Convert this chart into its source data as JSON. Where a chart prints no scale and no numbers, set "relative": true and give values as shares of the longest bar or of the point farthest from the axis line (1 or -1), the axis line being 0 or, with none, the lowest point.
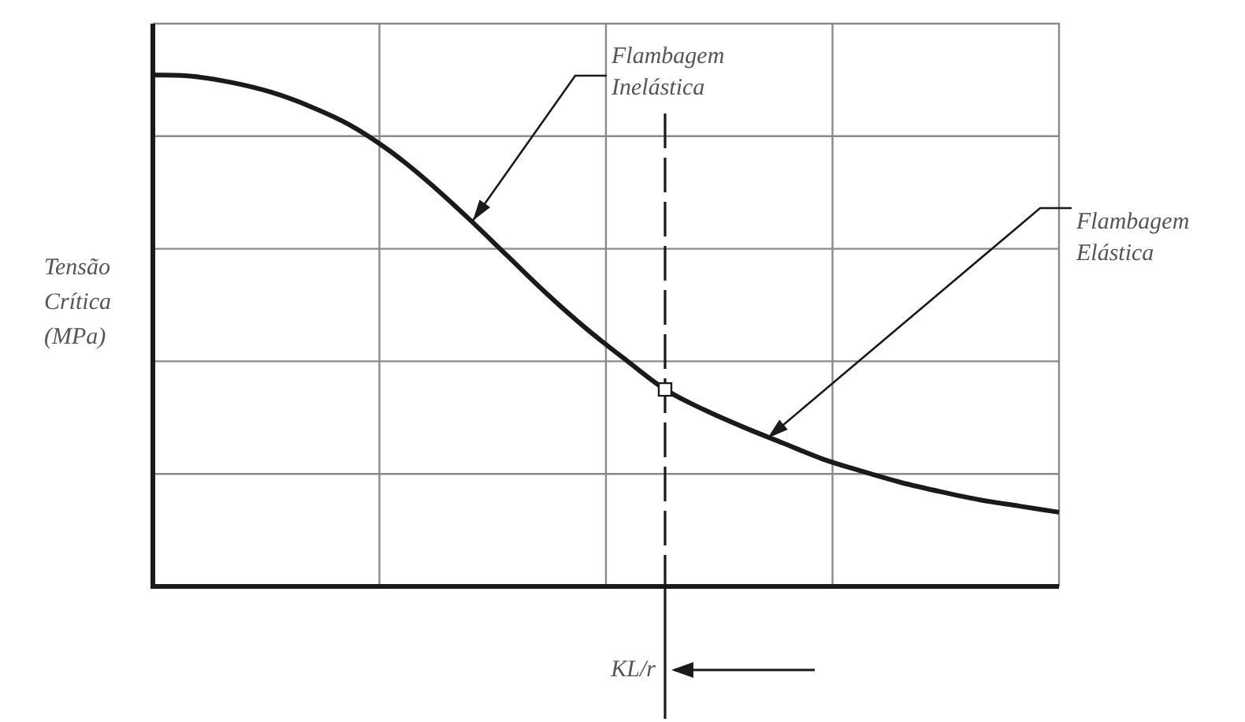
{
  "chart_data": {
    "type": "line",
    "relative": true,
    "grid": true,
    "legend": false,
    "ylabel": "Tensão Crítica (MPa)",
    "categories": [
      null,
      null,
      null,
      null,
      null,
      null,
      null,
      null,
      null,
      null,
      null,
      null,
      null,
      null,
      null,
      null,
      null,
      null,
      null,
      null,
      null,
      null,
      null,
      null
    ],
    "series": [
      {
        "color": "#1a1a1a",
        "values": [
          1.0,
          0.997,
          0.985,
          0.966,
          0.938,
          0.902,
          0.852,
          0.79,
          0.72,
          0.646,
          0.572,
          0.504,
          0.443,
          0.385,
          0.345,
          0.311,
          0.28,
          0.249,
          0.225,
          0.203,
          0.185,
          0.169,
          0.157,
          0.145
        ]
      }
    ],
    "xlabel": "KL/r",
    "annotations": [
      "Flambagem Inelástica",
      "Flambagem Elástica"
    ]
  }
}
